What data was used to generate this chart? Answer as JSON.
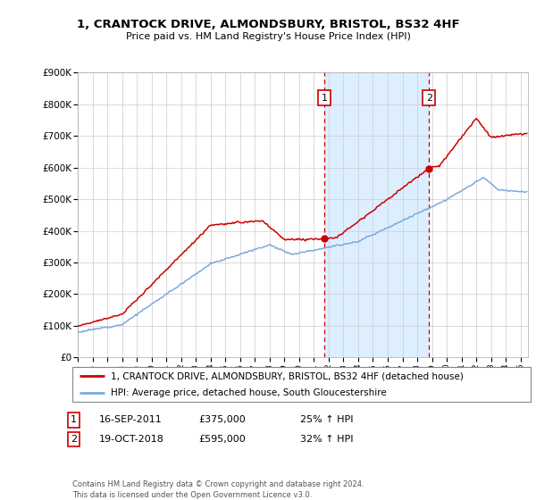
{
  "title": "1, CRANTOCK DRIVE, ALMONDSBURY, BRISTOL, BS32 4HF",
  "subtitle": "Price paid vs. HM Land Registry's House Price Index (HPI)",
  "xlim_start": 1995.0,
  "xlim_end": 2025.5,
  "ylim_min": 0,
  "ylim_max": 900000,
  "yticks": [
    0,
    100000,
    200000,
    300000,
    400000,
    500000,
    600000,
    700000,
    800000,
    900000
  ],
  "ytick_labels": [
    "£0",
    "£100K",
    "£200K",
    "£300K",
    "£400K",
    "£500K",
    "£600K",
    "£700K",
    "£800K",
    "£900K"
  ],
  "xtick_years": [
    1995,
    1996,
    1997,
    1998,
    1999,
    2000,
    2001,
    2002,
    2003,
    2004,
    2005,
    2006,
    2007,
    2008,
    2009,
    2010,
    2011,
    2012,
    2013,
    2014,
    2015,
    2016,
    2017,
    2018,
    2019,
    2020,
    2021,
    2022,
    2023,
    2024,
    2025
  ],
  "sale1_x": 2011.71,
  "sale1_y": 375000,
  "sale1_label": "1",
  "sale2_x": 2018.8,
  "sale2_y": 595000,
  "sale2_label": "2",
  "hpi_color": "#7aaadd",
  "price_color": "#cc0000",
  "vline_color": "#cc0000",
  "shade_color": "#ddeeff",
  "legend_line1": "1, CRANTOCK DRIVE, ALMONDSBURY, BRISTOL, BS32 4HF (detached house)",
  "legend_line2": "HPI: Average price, detached house, South Gloucestershire",
  "annotation1_date": "16-SEP-2011",
  "annotation1_price": "£375,000",
  "annotation1_hpi": "25% ↑ HPI",
  "annotation2_date": "19-OCT-2018",
  "annotation2_price": "£595,000",
  "annotation2_hpi": "32% ↑ HPI",
  "footer": "Contains HM Land Registry data © Crown copyright and database right 2024.\nThis data is licensed under the Open Government Licence v3.0.",
  "background_color": "#ffffff"
}
